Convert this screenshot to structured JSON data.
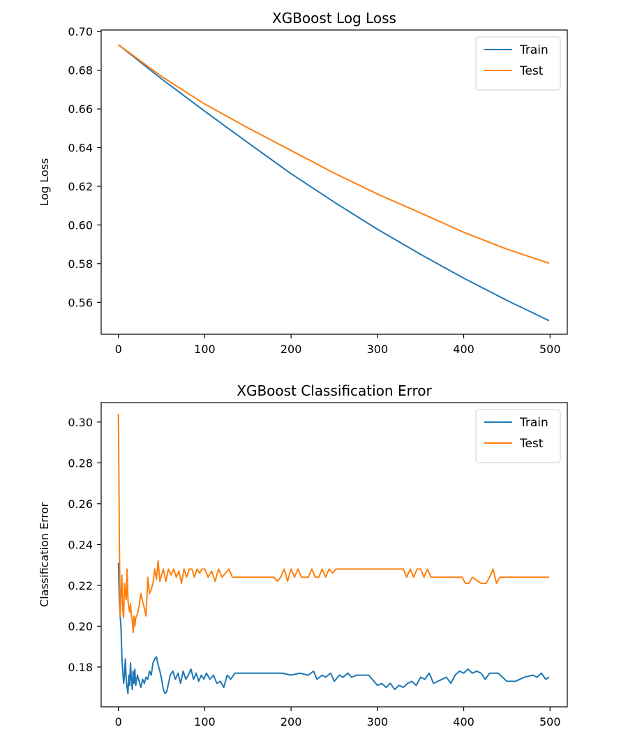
{
  "chart_data": [
    {
      "type": "line",
      "title": "XGBoost Log Loss",
      "xlabel": "",
      "ylabel": "Log Loss",
      "xlim": [
        -20,
        520
      ],
      "ylim": [
        0.5435,
        0.7008
      ],
      "xticks": [
        0,
        100,
        200,
        300,
        400,
        500
      ],
      "yticks": [
        0.56,
        0.58,
        0.6,
        0.62,
        0.64,
        0.66,
        0.68,
        0.7
      ],
      "ytick_labels": [
        "0.56",
        "0.58",
        "0.60",
        "0.62",
        "0.64",
        "0.66",
        "0.68",
        "0.70"
      ],
      "legend": "top-right",
      "grid": false,
      "series": [
        {
          "name": "Train",
          "color": "#1f77b4",
          "x": [
            0,
            50,
            100,
            150,
            200,
            250,
            300,
            350,
            400,
            450,
            499
          ],
          "y": [
            0.6932,
            0.6755,
            0.6588,
            0.6425,
            0.6265,
            0.6118,
            0.5978,
            0.5848,
            0.5725,
            0.561,
            0.5505
          ]
        },
        {
          "name": "Test",
          "color": "#ff7f0e",
          "x": [
            0,
            50,
            100,
            150,
            200,
            250,
            300,
            350,
            400,
            450,
            499
          ],
          "y": [
            0.6932,
            0.6768,
            0.6625,
            0.6502,
            0.6385,
            0.6268,
            0.616,
            0.6062,
            0.5962,
            0.5875,
            0.5802
          ]
        }
      ]
    },
    {
      "type": "line",
      "title": "XGBoost Classification Error",
      "xlabel": "",
      "ylabel": "Classification Error",
      "xlim": [
        -20,
        520
      ],
      "ylim": [
        0.1605,
        0.3095
      ],
      "xticks": [
        0,
        100,
        200,
        300,
        400,
        500
      ],
      "yticks": [
        0.18,
        0.2,
        0.22,
        0.24,
        0.26,
        0.28,
        0.3
      ],
      "ytick_labels": [
        "0.18",
        "0.20",
        "0.22",
        "0.24",
        "0.26",
        "0.28",
        "0.30"
      ],
      "legend": "top-right",
      "grid": false,
      "series": [
        {
          "name": "Train",
          "color": "#1f77b4",
          "x": [
            0,
            1,
            2,
            3,
            4,
            5,
            6,
            7,
            8,
            9,
            10,
            11,
            12,
            13,
            14,
            15,
            16,
            17,
            18,
            19,
            20,
            22,
            24,
            26,
            28,
            30,
            32,
            34,
            36,
            38,
            40,
            42,
            44,
            46,
            48,
            50,
            52,
            54,
            56,
            58,
            60,
            63,
            66,
            69,
            72,
            75,
            78,
            81,
            84,
            87,
            90,
            93,
            96,
            99,
            102,
            106,
            110,
            114,
            118,
            122,
            126,
            130,
            135,
            140,
            150,
            160,
            170,
            180,
            190,
            200,
            210,
            220,
            226,
            230,
            236,
            240,
            246,
            250,
            256,
            260,
            266,
            270,
            276,
            280,
            290,
            300,
            305,
            310,
            315,
            320,
            325,
            330,
            335,
            340,
            345,
            350,
            355,
            360,
            365,
            370,
            380,
            385,
            390,
            395,
            400,
            405,
            410,
            415,
            420,
            425,
            430,
            440,
            450,
            460,
            470,
            480,
            485,
            490,
            495,
            499
          ],
          "y": [
            0.231,
            0.214,
            0.205,
            0.199,
            0.185,
            0.178,
            0.172,
            0.176,
            0.184,
            0.174,
            0.17,
            0.167,
            0.176,
            0.171,
            0.182,
            0.174,
            0.169,
            0.178,
            0.172,
            0.179,
            0.171,
            0.176,
            0.173,
            0.17,
            0.174,
            0.172,
            0.175,
            0.174,
            0.178,
            0.176,
            0.182,
            0.184,
            0.185,
            0.181,
            0.178,
            0.174,
            0.169,
            0.167,
            0.168,
            0.172,
            0.176,
            0.178,
            0.174,
            0.177,
            0.172,
            0.178,
            0.174,
            0.176,
            0.179,
            0.174,
            0.177,
            0.173,
            0.176,
            0.174,
            0.177,
            0.174,
            0.176,
            0.172,
            0.173,
            0.17,
            0.176,
            0.174,
            0.177,
            0.177,
            0.177,
            0.177,
            0.177,
            0.177,
            0.177,
            0.176,
            0.177,
            0.176,
            0.178,
            0.174,
            0.176,
            0.175,
            0.177,
            0.173,
            0.176,
            0.175,
            0.177,
            0.175,
            0.176,
            0.176,
            0.176,
            0.171,
            0.172,
            0.17,
            0.172,
            0.169,
            0.171,
            0.17,
            0.172,
            0.173,
            0.171,
            0.175,
            0.174,
            0.177,
            0.172,
            0.173,
            0.175,
            0.172,
            0.176,
            0.178,
            0.177,
            0.179,
            0.177,
            0.178,
            0.177,
            0.174,
            0.177,
            0.177,
            0.173,
            0.173,
            0.175,
            0.176,
            0.175,
            0.177,
            0.174,
            0.175
          ]
        },
        {
          "name": "Test",
          "color": "#ff7f0e",
          "x": [
            0,
            1,
            2,
            3,
            4,
            5,
            6,
            7,
            8,
            9,
            10,
            11,
            12,
            13,
            14,
            15,
            16,
            17,
            18,
            19,
            20,
            22,
            24,
            26,
            28,
            30,
            32,
            34,
            36,
            38,
            40,
            42,
            44,
            46,
            48,
            50,
            52,
            55,
            58,
            61,
            64,
            67,
            70,
            73,
            76,
            79,
            82,
            85,
            88,
            91,
            94,
            97,
            100,
            104,
            108,
            112,
            116,
            120,
            124,
            128,
            132,
            136,
            140,
            150,
            160,
            170,
            180,
            184,
            188,
            192,
            196,
            200,
            204,
            208,
            212,
            216,
            220,
            224,
            228,
            232,
            236,
            240,
            244,
            248,
            252,
            256,
            260,
            270,
            280,
            290,
            300,
            310,
            320,
            330,
            334,
            338,
            342,
            346,
            350,
            354,
            358,
            362,
            370,
            380,
            390,
            398,
            402,
            406,
            410,
            420,
            426,
            430,
            434,
            438,
            442,
            450,
            460,
            470,
            480,
            490,
            499
          ],
          "y": [
            0.304,
            0.245,
            0.205,
            0.215,
            0.225,
            0.208,
            0.204,
            0.221,
            0.216,
            0.213,
            0.228,
            0.213,
            0.209,
            0.207,
            0.211,
            0.205,
            0.203,
            0.197,
            0.205,
            0.2,
            0.204,
            0.206,
            0.21,
            0.216,
            0.212,
            0.209,
            0.205,
            0.224,
            0.216,
            0.218,
            0.221,
            0.228,
            0.223,
            0.232,
            0.222,
            0.225,
            0.228,
            0.222,
            0.228,
            0.225,
            0.228,
            0.224,
            0.227,
            0.221,
            0.228,
            0.224,
            0.228,
            0.228,
            0.224,
            0.228,
            0.226,
            0.228,
            0.228,
            0.224,
            0.227,
            0.222,
            0.228,
            0.224,
            0.226,
            0.228,
            0.224,
            0.224,
            0.224,
            0.224,
            0.224,
            0.224,
            0.224,
            0.222,
            0.224,
            0.228,
            0.222,
            0.228,
            0.224,
            0.228,
            0.224,
            0.224,
            0.224,
            0.228,
            0.224,
            0.224,
            0.228,
            0.224,
            0.228,
            0.226,
            0.228,
            0.228,
            0.228,
            0.228,
            0.228,
            0.228,
            0.228,
            0.228,
            0.228,
            0.228,
            0.224,
            0.228,
            0.224,
            0.228,
            0.228,
            0.224,
            0.228,
            0.224,
            0.224,
            0.224,
            0.224,
            0.224,
            0.221,
            0.221,
            0.224,
            0.221,
            0.221,
            0.224,
            0.228,
            0.221,
            0.224,
            0.224,
            0.224,
            0.224,
            0.224,
            0.224,
            0.224
          ]
        }
      ]
    }
  ]
}
